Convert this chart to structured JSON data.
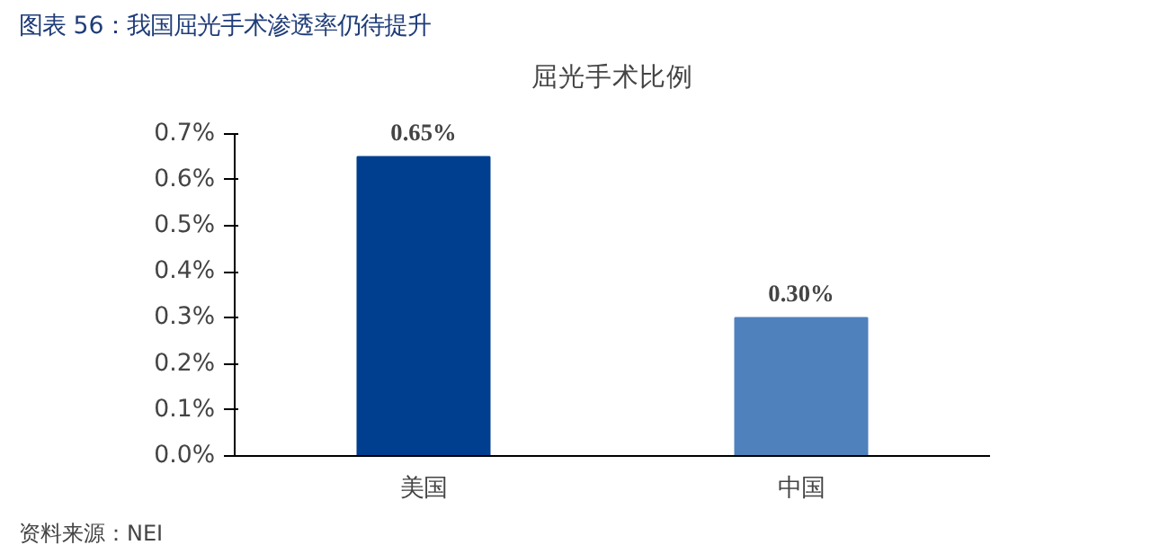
{
  "chart_data": {
    "type": "bar",
    "title": "图表 56：我国屈光手术渗透率仍待提升",
    "subtitle": "屈光手术比例",
    "categories": [
      "美国",
      "中国"
    ],
    "values": [
      0.65,
      0.3
    ],
    "colors": [
      "#003f8f",
      "#4f81bd"
    ],
    "value_labels": [
      "0.65%",
      "0.30%"
    ],
    "ylim": [
      0,
      0.7
    ],
    "yticks": [
      {
        "value": 0,
        "label": "0.0%"
      },
      {
        "value": 0.1,
        "label": "0.1%"
      },
      {
        "value": 0.2,
        "label": "0.2%"
      },
      {
        "value": 0.3,
        "label": "0.3%"
      },
      {
        "value": 0.4,
        "label": "0.4%"
      },
      {
        "value": 0.5,
        "label": "0.5%"
      },
      {
        "value": 0.6,
        "label": "0.6%"
      },
      {
        "value": 0.7,
        "label": "0.7%"
      }
    ],
    "grid": false,
    "annotations": [
      "资料来源：NEI"
    ]
  }
}
